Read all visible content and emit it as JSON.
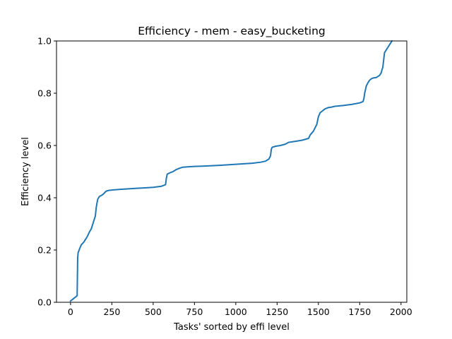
{
  "chart_data": {
    "type": "line",
    "title": "Efficiency - mem - easy_bucketing",
    "xlabel": "Tasks' sorted by effi level",
    "ylabel": "Efficiency level",
    "xlim": [
      -85,
      2035
    ],
    "ylim": [
      0.0,
      1.0
    ],
    "xticks": [
      0,
      250,
      500,
      750,
      1000,
      1250,
      1500,
      1750,
      2000
    ],
    "yticks": [
      0.0,
      0.2,
      0.4,
      0.6,
      0.8,
      1.0
    ],
    "xtick_labels": [
      "0",
      "250",
      "500",
      "750",
      "1000",
      "1250",
      "1500",
      "1750",
      "2000"
    ],
    "ytick_labels": [
      "0.0",
      "0.2",
      "0.4",
      "0.6",
      "0.8",
      "1.0"
    ],
    "grid": false,
    "colors": {
      "series": "#1f77b4"
    },
    "series": [
      {
        "x": [
          0,
          20,
          40,
          43,
          46,
          55,
          65,
          80,
          90,
          100,
          115,
          125,
          140,
          150,
          155,
          160,
          165,
          175,
          190,
          200,
          215,
          230,
          260,
          300,
          350,
          400,
          450,
          500,
          550,
          575,
          580,
          585,
          590,
          600,
          620,
          640,
          660,
          680,
          700,
          750,
          800,
          900,
          1000,
          1100,
          1150,
          1180,
          1200,
          1210,
          1215,
          1220,
          1240,
          1270,
          1300,
          1320,
          1350,
          1400,
          1440,
          1450,
          1470,
          1480,
          1490,
          1500,
          1510,
          1520,
          1540,
          1560,
          1580,
          1600,
          1650,
          1700,
          1750,
          1770,
          1775,
          1780,
          1790,
          1800,
          1810,
          1820,
          1830,
          1850,
          1870,
          1880,
          1885,
          1890,
          1900,
          1910,
          1920,
          1930,
          1940,
          1945
        ],
        "y": [
          0.005,
          0.015,
          0.025,
          0.17,
          0.19,
          0.205,
          0.22,
          0.23,
          0.24,
          0.25,
          0.27,
          0.28,
          0.31,
          0.33,
          0.36,
          0.38,
          0.395,
          0.405,
          0.41,
          0.415,
          0.425,
          0.428,
          0.43,
          0.432,
          0.434,
          0.436,
          0.438,
          0.44,
          0.444,
          0.45,
          0.475,
          0.49,
          0.492,
          0.495,
          0.5,
          0.508,
          0.513,
          0.517,
          0.518,
          0.52,
          0.521,
          0.524,
          0.528,
          0.532,
          0.536,
          0.54,
          0.548,
          0.56,
          0.585,
          0.593,
          0.597,
          0.6,
          0.605,
          0.612,
          0.615,
          0.62,
          0.627,
          0.64,
          0.655,
          0.668,
          0.68,
          0.71,
          0.725,
          0.73,
          0.74,
          0.745,
          0.747,
          0.75,
          0.753,
          0.757,
          0.763,
          0.768,
          0.778,
          0.8,
          0.828,
          0.84,
          0.85,
          0.855,
          0.858,
          0.86,
          0.868,
          0.878,
          0.89,
          0.9,
          0.955,
          0.965,
          0.975,
          0.985,
          0.995,
          1.0
        ]
      }
    ]
  }
}
